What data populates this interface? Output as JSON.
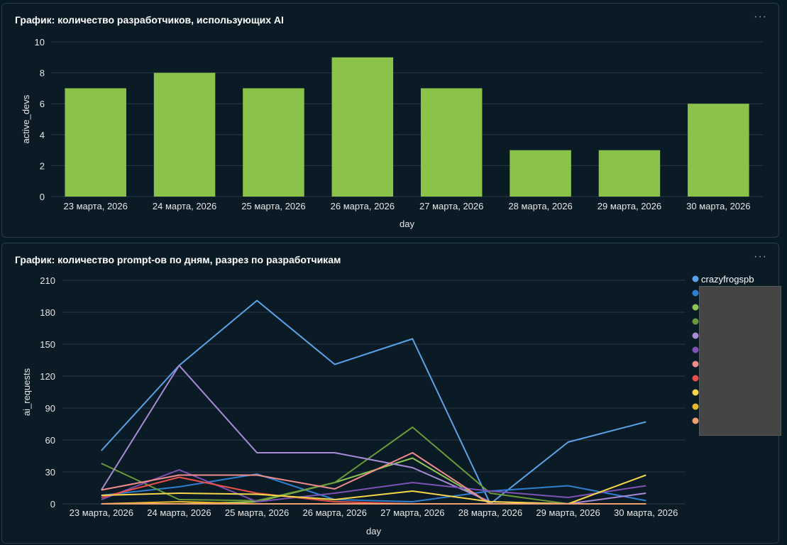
{
  "charts": [
    {
      "card_title": "График: количество разработчиков, использующих AI",
      "more_label": "···"
    },
    {
      "card_title": "График: количество prompt-ов по дням, разрез по разработчикам",
      "more_label": "···"
    }
  ],
  "chart_data": [
    {
      "type": "bar",
      "title": "График: количество разработчиков, использующих AI",
      "categories": [
        "23 марта, 2026",
        "24 марта, 2026",
        "25 марта, 2026",
        "26 марта, 2026",
        "27 марта, 2026",
        "28 марта, 2026",
        "29 марта, 2026",
        "30 марта, 2026"
      ],
      "values": [
        7,
        8,
        7,
        9,
        7,
        3,
        3,
        6
      ],
      "xlabel": "day",
      "ylabel": "active_devs",
      "ylim": [
        0,
        10
      ],
      "yticks": [
        0,
        2,
        4,
        6,
        8,
        10
      ],
      "bar_color": "#8bc34a",
      "grid": true
    },
    {
      "type": "line",
      "title": "График: количество prompt-ов по дням, разрез по разработчикам",
      "categories": [
        "23 марта, 2026",
        "24 марта, 2026",
        "25 марта, 2026",
        "26 марта, 2026",
        "27 марта, 2026",
        "28 марта, 2026",
        "29 марта, 2026",
        "30 марта, 2026"
      ],
      "xlabel": "day",
      "ylabel": "ai_requests",
      "ylim": [
        0,
        210
      ],
      "yticks": [
        0,
        30,
        60,
        90,
        120,
        150,
        180,
        210
      ],
      "grid": true,
      "legend_position": "right",
      "series": [
        {
          "name": "crazyfrogspb",
          "color": "#5aa3e8",
          "values": [
            50,
            130,
            191,
            131,
            155,
            0,
            58,
            77
          ]
        },
        {
          "color": "#2f7fd1",
          "values": [
            8,
            16,
            28,
            4,
            2,
            12,
            17,
            3
          ]
        },
        {
          "color": "#8dc455",
          "values": [
            0,
            0,
            2,
            20,
            43,
            0,
            0,
            0
          ]
        },
        {
          "color": "#6a9a3a",
          "values": [
            38,
            4,
            3,
            20,
            72,
            10,
            0,
            0
          ]
        },
        {
          "color": "#a88bd4",
          "values": [
            13,
            130,
            48,
            48,
            34,
            2,
            0,
            10
          ]
        },
        {
          "color": "#7d52b2",
          "values": [
            4,
            32,
            2,
            10,
            20,
            12,
            6,
            17
          ]
        },
        {
          "color": "#f08c8c",
          "values": [
            13,
            27,
            27,
            14,
            48,
            0,
            0,
            0
          ]
        },
        {
          "color": "#e8504a",
          "values": [
            6,
            25,
            10,
            2,
            0,
            0,
            0,
            0
          ]
        },
        {
          "color": "#f5d54a",
          "values": [
            8,
            10,
            9,
            4,
            12,
            2,
            0,
            27
          ]
        },
        {
          "color": "#e8b82a",
          "values": [
            0,
            2,
            0,
            0,
            0,
            0,
            0,
            0
          ]
        },
        {
          "color": "#f0a070",
          "values": [
            0,
            0,
            0,
            0,
            0,
            0,
            0,
            0
          ]
        }
      ]
    }
  ]
}
